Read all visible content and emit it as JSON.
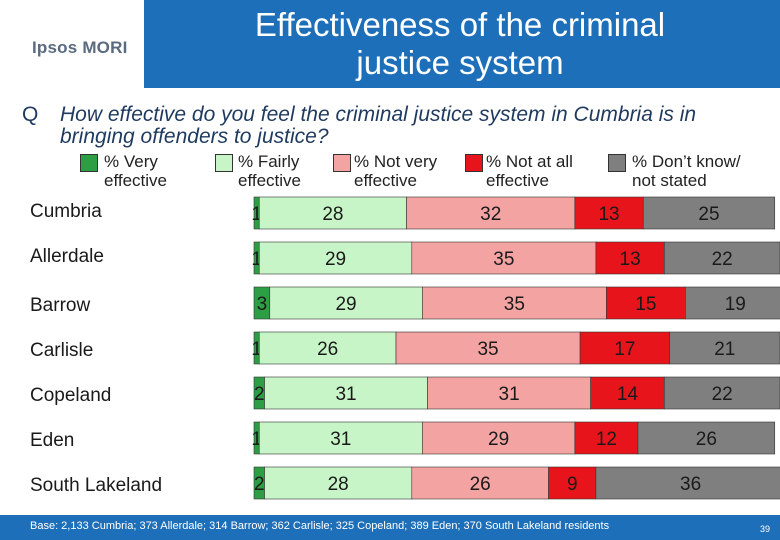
{
  "header": {
    "logo": "Ipsos MORI",
    "title_line1": "Effectiveness of the criminal",
    "title_line2": "justice system"
  },
  "question": {
    "marker": "Q",
    "text": "How effective do you feel the criminal justice system in Cumbria is in bringing offenders to justice?"
  },
  "footer": {
    "base": "Base: 2,133 Cumbria; 373 Allerdale; 314 Barrow; 362 Carlisle; 325 Copeland; 389 Eden; 370 South Lakeland residents",
    "page": "39"
  },
  "colors": {
    "very": "#2e9e44",
    "fairly": "#c8f5c8",
    "not_very": "#f4a3a3",
    "not_at_all": "#e8141b",
    "dont_know": "#7f7f7f"
  },
  "chart_data": {
    "type": "bar",
    "orientation": "horizontal",
    "stacked": true,
    "categories": [
      "Cumbria",
      "Allerdale",
      "Barrow",
      "Carlisle",
      "Copeland",
      "Eden",
      "South Lakeland"
    ],
    "series": [
      {
        "name": "% Very effective",
        "values": [
          1,
          1,
          3,
          1,
          2,
          1,
          2
        ]
      },
      {
        "name": "% Fairly effective",
        "values": [
          28,
          29,
          29,
          26,
          31,
          31,
          28
        ]
      },
      {
        "name": "% Not very effective",
        "values": [
          32,
          35,
          35,
          35,
          31,
          29,
          26
        ]
      },
      {
        "name": "% Not at all effective",
        "values": [
          13,
          13,
          15,
          17,
          14,
          12,
          9
        ]
      },
      {
        "name": "% Don’t know/ not stated",
        "values": [
          25,
          22,
          19,
          21,
          22,
          26,
          36
        ]
      }
    ],
    "legend_position": "top",
    "legend_labels": [
      [
        "% Very",
        "effective"
      ],
      [
        "% Fairly",
        "effective"
      ],
      [
        "% Not very",
        "effective"
      ],
      [
        "% Not at all",
        "effective"
      ],
      [
        "% Don’t know/",
        "not stated"
      ]
    ]
  }
}
